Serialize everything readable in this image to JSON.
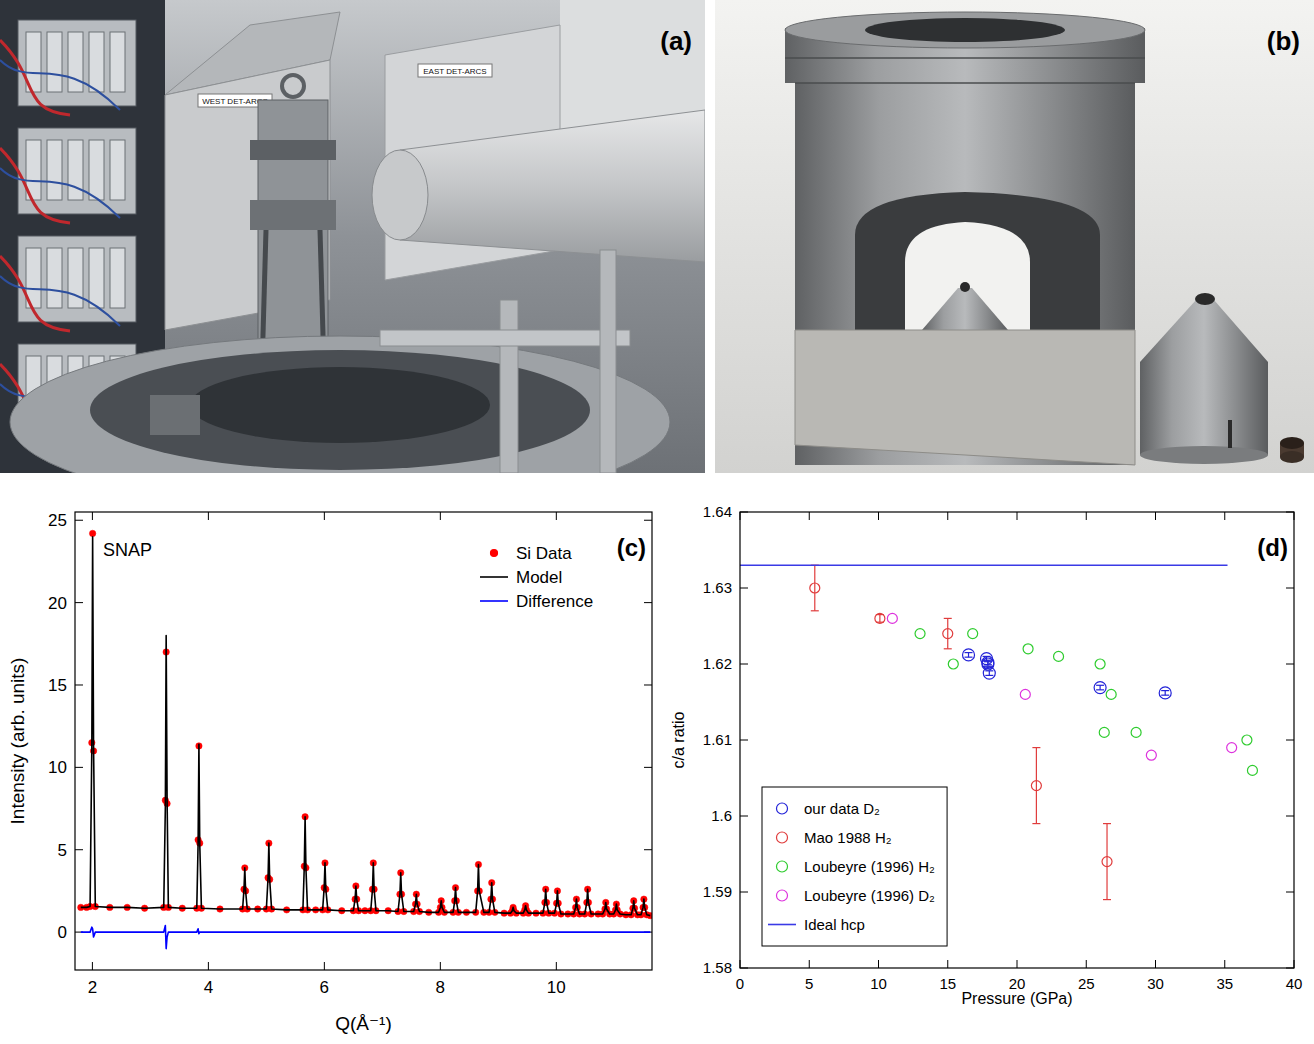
{
  "photos": [
    {
      "label": "(a)",
      "texts": [
        "WEST DET-ARCS",
        "EAST DET-ARCS"
      ]
    },
    {
      "label": "(b)"
    }
  ],
  "chart_data": [
    {
      "type": "line",
      "label": "(c)",
      "annotations": [
        "SNAP"
      ],
      "xlabel": "Q(Å⁻¹)",
      "ylabel": "Intensity (arb. units)",
      "xlim": [
        1.7,
        11.65
      ],
      "ylim": [
        -2.3,
        25.5
      ],
      "xticks": [
        2,
        4,
        6,
        8,
        10
      ],
      "yticks": [
        0,
        5,
        10,
        15,
        20,
        25
      ],
      "legend": "upper right",
      "x": [
        1.8,
        1.9,
        1.96,
        1.99,
        2.004,
        2.02,
        2.05,
        2.3,
        2.6,
        2.9,
        3.23,
        3.258,
        3.272,
        3.288,
        3.31,
        3.55,
        3.8,
        3.823,
        3.837,
        3.851,
        3.88,
        4.2,
        4.59,
        4.614,
        4.628,
        4.642,
        4.67,
        4.85,
        5.0,
        5.029,
        5.043,
        5.057,
        5.09,
        5.35,
        5.63,
        5.654,
        5.668,
        5.682,
        5.71,
        5.85,
        5.97,
        5.997,
        6.011,
        6.025,
        6.06,
        6.3,
        6.5,
        6.53,
        6.544,
        6.558,
        6.59,
        6.7,
        6.8,
        6.83,
        6.844,
        6.858,
        6.89,
        7.1,
        7.27,
        7.303,
        7.317,
        7.331,
        7.37,
        7.54,
        7.572,
        7.586,
        7.6,
        7.64,
        7.8,
        7.97,
        8.001,
        8.015,
        8.029,
        8.07,
        8.22,
        8.248,
        8.262,
        8.276,
        8.31,
        8.45,
        8.61,
        8.643,
        8.657,
        8.671,
        8.75,
        8.84,
        8.872,
        8.886,
        8.9,
        8.94,
        9.1,
        9.21,
        9.241,
        9.255,
        9.269,
        9.31,
        9.43,
        9.456,
        9.47,
        9.484,
        9.52,
        9.65,
        9.77,
        9.803,
        9.817,
        9.831,
        9.87,
        9.97,
        10.005,
        10.019,
        10.033,
        10.08,
        10.2,
        10.3,
        10.333,
        10.347,
        10.361,
        10.4,
        10.49,
        10.526,
        10.54,
        10.554,
        10.6,
        10.72,
        10.8,
        10.839,
        10.853,
        10.867,
        10.92,
        10.99,
        11.022,
        11.036,
        11.05,
        11.1,
        11.2,
        11.29,
        11.321,
        11.335,
        11.349,
        11.4,
        11.46,
        11.496,
        11.51,
        11.524,
        11.56,
        11.62
      ],
      "series": [
        {
          "name": "Si Data",
          "type": "scatter",
          "marker": "circle",
          "color": "#ff0000",
          "values": [
            1.5,
            1.5,
            1.55,
            11.5,
            24.2,
            11.0,
            1.55,
            1.5,
            1.5,
            1.45,
            1.5,
            8.0,
            17.0,
            7.8,
            1.5,
            1.45,
            1.45,
            5.6,
            11.3,
            5.4,
            1.45,
            1.4,
            1.4,
            2.6,
            3.9,
            2.5,
            1.4,
            1.4,
            1.4,
            3.3,
            5.4,
            3.2,
            1.4,
            1.35,
            1.35,
            4.0,
            7.0,
            3.9,
            1.35,
            1.35,
            1.35,
            2.7,
            4.2,
            2.6,
            1.35,
            1.3,
            1.3,
            2.0,
            2.8,
            2.0,
            1.3,
            1.3,
            1.3,
            2.6,
            4.2,
            2.6,
            1.3,
            1.3,
            1.25,
            2.3,
            3.6,
            2.3,
            1.25,
            1.25,
            1.7,
            2.3,
            1.7,
            1.25,
            1.2,
            1.2,
            1.5,
            1.9,
            1.5,
            1.2,
            1.2,
            1.9,
            2.7,
            1.9,
            1.2,
            1.2,
            1.2,
            2.5,
            4.1,
            2.5,
            1.2,
            1.2,
            2.0,
            3.0,
            2.0,
            1.2,
            1.15,
            1.15,
            1.3,
            1.5,
            1.3,
            1.15,
            1.15,
            1.35,
            1.6,
            1.35,
            1.15,
            1.15,
            1.15,
            1.8,
            2.6,
            1.8,
            1.15,
            1.15,
            1.75,
            2.5,
            1.75,
            1.1,
            1.1,
            1.1,
            1.5,
            2.0,
            1.5,
            1.1,
            1.1,
            1.8,
            2.6,
            1.8,
            1.1,
            1.1,
            1.1,
            1.4,
            1.8,
            1.4,
            1.1,
            1.1,
            1.35,
            1.7,
            1.35,
            1.1,
            1.05,
            1.05,
            1.45,
            1.9,
            1.45,
            1.05,
            1.05,
            1.5,
            2.0,
            1.5,
            1.05,
            1.0
          ]
        },
        {
          "name": "Model",
          "type": "line",
          "line_style": "solid",
          "color": "#000000",
          "values": [
            1.5,
            1.5,
            1.55,
            11.2,
            24.0,
            11.3,
            1.55,
            1.5,
            1.5,
            1.45,
            1.5,
            7.6,
            18.0,
            8.1,
            1.5,
            1.45,
            1.45,
            5.4,
            11.4,
            5.4,
            1.45,
            1.4,
            1.4,
            2.6,
            3.9,
            2.5,
            1.4,
            1.4,
            1.4,
            3.3,
            5.4,
            3.2,
            1.4,
            1.35,
            1.35,
            4.0,
            7.0,
            3.9,
            1.35,
            1.35,
            1.35,
            2.7,
            4.2,
            2.6,
            1.35,
            1.3,
            1.3,
            2.0,
            2.8,
            2.0,
            1.3,
            1.3,
            1.3,
            2.6,
            4.2,
            2.6,
            1.3,
            1.3,
            1.25,
            2.3,
            3.6,
            2.3,
            1.25,
            1.25,
            1.7,
            2.3,
            1.7,
            1.25,
            1.2,
            1.2,
            1.5,
            1.9,
            1.5,
            1.2,
            1.2,
            1.9,
            2.7,
            1.9,
            1.2,
            1.2,
            1.2,
            2.5,
            4.1,
            2.5,
            1.2,
            1.2,
            2.0,
            3.0,
            2.0,
            1.2,
            1.15,
            1.15,
            1.3,
            1.5,
            1.3,
            1.15,
            1.15,
            1.35,
            1.6,
            1.35,
            1.15,
            1.15,
            1.15,
            1.8,
            2.6,
            1.8,
            1.15,
            1.15,
            1.75,
            2.5,
            1.75,
            1.1,
            1.1,
            1.1,
            1.5,
            2.0,
            1.5,
            1.1,
            1.1,
            1.8,
            2.6,
            1.8,
            1.1,
            1.1,
            1.1,
            1.4,
            1.8,
            1.4,
            1.1,
            1.1,
            1.35,
            1.7,
            1.35,
            1.1,
            1.05,
            1.05,
            1.45,
            1.9,
            1.45,
            1.05,
            1.05,
            1.5,
            2.0,
            1.5,
            1.05,
            1.0
          ]
        },
        {
          "name": "Difference",
          "type": "line",
          "line_style": "solid",
          "color": "#0000ff",
          "values": [
            0,
            0,
            0,
            0.3,
            0.2,
            -0.3,
            0,
            0,
            0,
            0,
            0,
            0.4,
            -1.0,
            -0.3,
            0,
            0,
            0,
            0.2,
            -0.1,
            0,
            0,
            0,
            0,
            0,
            0,
            0,
            0,
            0,
            0,
            0,
            0,
            0,
            0,
            0,
            0,
            0,
            0,
            0,
            0,
            0,
            0,
            0,
            0,
            0,
            0,
            0,
            0,
            0,
            0,
            0,
            0,
            0,
            0,
            0,
            0,
            0,
            0,
            0,
            0,
            0,
            0,
            0,
            0,
            0,
            0,
            0,
            0,
            0,
            0,
            0,
            0,
            0,
            0,
            0,
            0,
            0,
            0,
            0,
            0,
            0,
            0,
            0,
            0,
            0,
            0,
            0,
            0,
            0,
            0,
            0,
            0,
            0,
            0,
            0,
            0,
            0,
            0,
            0,
            0,
            0,
            0,
            0,
            0,
            0,
            0,
            0,
            0,
            0,
            0,
            0,
            0,
            0,
            0,
            0,
            0,
            0,
            0,
            0,
            0,
            0,
            0,
            0,
            0,
            0,
            0,
            0,
            0,
            0,
            0,
            0,
            0,
            0,
            0,
            0,
            0,
            0,
            0,
            0,
            0,
            0,
            0,
            0,
            0,
            0,
            0,
            0
          ]
        }
      ]
    },
    {
      "type": "scatter",
      "label": "(d)",
      "xlabel": "Pressure (GPa)",
      "ylabel": "c/a ratio",
      "xlim": [
        0,
        40
      ],
      "ylim": [
        1.58,
        1.64
      ],
      "xticks": [
        0,
        5,
        10,
        15,
        20,
        25,
        30,
        35,
        40
      ],
      "yticks": [
        1.58,
        1.59,
        1.6,
        1.61,
        1.62,
        1.63,
        1.64
      ],
      "legend": "lower left",
      "series": [
        {
          "name": "our data D₂",
          "type": "scatter",
          "marker": "open-circle",
          "color": "#2323d8",
          "x": [
            16.5,
            17.8,
            17.9,
            17.9,
            18.0,
            26.0,
            30.7
          ],
          "values": [
            1.6212,
            1.6207,
            1.6202,
            1.62,
            1.6188,
            1.6169,
            1.6162
          ],
          "errors": [
            0.0003,
            0.0003,
            0.0003,
            0.0003,
            0.0003,
            0.0003,
            0.0003
          ]
        },
        {
          "name": "Mao 1988 H₂",
          "type": "scatter",
          "marker": "open-circle",
          "color": "#e03c3c",
          "x": [
            5.4,
            10.1,
            15.0,
            21.4,
            26.5
          ],
          "values": [
            1.63,
            1.626,
            1.624,
            1.604,
            1.594
          ],
          "errors": [
            0.003,
            0.0005,
            0.002,
            0.005,
            0.005
          ]
        },
        {
          "name": "Loubeyre (1996) H₂",
          "type": "scatter",
          "marker": "open-circle",
          "color": "#2ecc2e",
          "x": [
            13.0,
            15.4,
            16.8,
            20.8,
            23.0,
            26.0,
            26.3,
            26.8,
            28.6,
            36.6,
            37.0
          ],
          "values": [
            1.624,
            1.62,
            1.624,
            1.622,
            1.621,
            1.62,
            1.611,
            1.616,
            1.611,
            1.61,
            1.606
          ]
        },
        {
          "name": "Loubeyre (1996) D₂",
          "type": "scatter",
          "marker": "open-circle",
          "color": "#dd33dd",
          "x": [
            11.0,
            20.6,
            29.7,
            35.5
          ],
          "values": [
            1.626,
            1.616,
            1.608,
            1.609
          ]
        },
        {
          "name": "Ideal hcp",
          "type": "line",
          "line_style": "solid",
          "color": "#3a3ae6",
          "x": [
            0,
            35.2
          ],
          "values": [
            1.633,
            1.633
          ]
        }
      ]
    }
  ]
}
